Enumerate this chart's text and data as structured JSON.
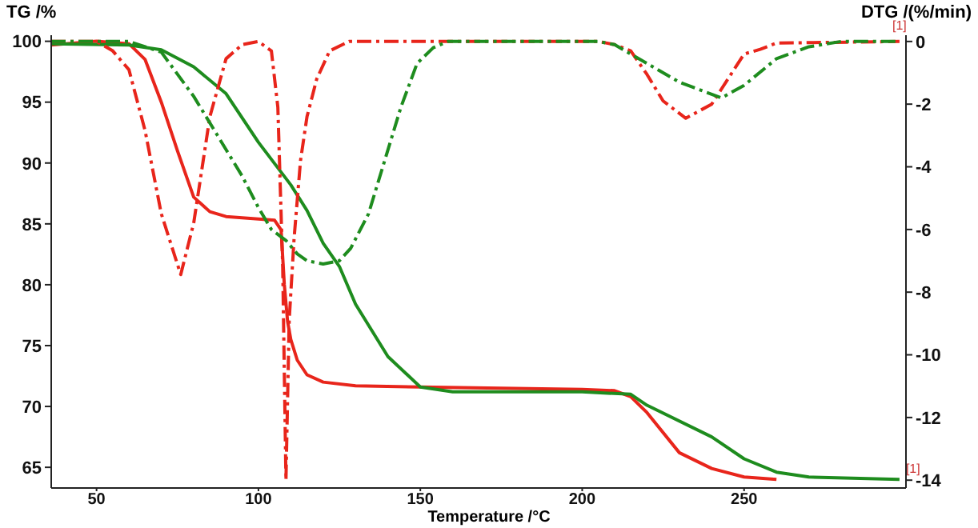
{
  "chart_data": {
    "type": "line",
    "xlabel": "Temperature /°C",
    "ylabel": "TG /%",
    "y2label": "DTG /(%/min)",
    "xlim": [
      36,
      300
    ],
    "xticks": [
      50,
      100,
      150,
      200,
      250
    ],
    "ylim": [
      63.3,
      100.5
    ],
    "yticks": [
      65,
      70,
      75,
      80,
      85,
      90,
      95,
      100
    ],
    "y2lim": [
      -14.25,
      0.2
    ],
    "y2ticks": [
      0,
      -2,
      -4,
      -6,
      -8,
      -10,
      -12,
      -14
    ],
    "marker": "none",
    "series": [
      {
        "color": "#e8251b",
        "line_style": "solid",
        "x": [
          36,
          50,
          60,
          65,
          70,
          75,
          80,
          85,
          90,
          100,
          105,
          107,
          108,
          109,
          110,
          112,
          115,
          120,
          130,
          150,
          200,
          210,
          215,
          220,
          230,
          240,
          250,
          260
        ],
        "values": [
          99.7,
          100,
          99.8,
          98.5,
          95,
          91,
          87.2,
          86,
          85.6,
          85.4,
          85.3,
          84.5,
          80,
          77,
          75.5,
          73.8,
          72.6,
          72,
          71.7,
          71.6,
          71.4,
          71.3,
          70.8,
          69.5,
          66.2,
          64.9,
          64.2,
          64
        ]
      },
      {
        "color": "#1e8c1e",
        "line_style": "solid",
        "x": [
          36,
          60,
          70,
          80,
          90,
          100,
          110,
          115,
          120,
          125,
          130,
          140,
          150,
          160,
          200,
          215,
          220,
          240,
          250,
          260,
          270,
          298
        ],
        "values": [
          99.8,
          99.7,
          99.3,
          97.9,
          95.7,
          91.7,
          88.2,
          86.1,
          83.4,
          81.5,
          78.4,
          74.1,
          71.6,
          71.2,
          71.2,
          71,
          70.1,
          67.5,
          65.7,
          64.6,
          64.2,
          64
        ]
      },
      {
        "color": "#e8251b",
        "line_style": "dashed",
        "axis": "y2",
        "x": [
          36,
          50,
          55,
          60,
          65,
          70,
          76,
          80,
          85,
          90,
          95,
          100,
          104,
          106,
          107.5,
          108.5,
          109.5,
          111,
          113,
          115,
          118,
          122,
          128,
          205,
          210,
          215,
          220,
          225,
          232,
          240,
          245,
          250,
          255,
          260,
          298
        ],
        "values": [
          0,
          0,
          -0.3,
          -0.9,
          -2.85,
          -5.5,
          -7.44,
          -5.8,
          -2.4,
          -0.55,
          -0.1,
          0,
          -0.3,
          -2.1,
          -7.2,
          -14,
          -8.9,
          -6.3,
          -3.8,
          -2.4,
          -1.2,
          -0.3,
          0,
          0,
          -0.1,
          -0.3,
          -1.05,
          -1.9,
          -2.45,
          -2,
          -1.2,
          -0.4,
          -0.25,
          -0.05,
          0
        ]
      },
      {
        "color": "#1e8c1e",
        "line_style": "dashed",
        "axis": "y2",
        "x": [
          36,
          60,
          70,
          80,
          90,
          95,
          100,
          104,
          108.5,
          112,
          115,
          120,
          125,
          128.5,
          134,
          139,
          144,
          149,
          154,
          158.5,
          205,
          210,
          220,
          230,
          243,
          250,
          260,
          270,
          280,
          298
        ],
        "values": [
          0,
          0,
          -0.34,
          -1.75,
          -3.45,
          -4.3,
          -5.3,
          -6,
          -6.35,
          -6.78,
          -7,
          -7.1,
          -7,
          -6.6,
          -5.5,
          -3.8,
          -2.1,
          -0.7,
          -0.2,
          0,
          0,
          -0.1,
          -0.7,
          -1.3,
          -1.8,
          -1.4,
          -0.55,
          -0.17,
          0,
          0
        ]
      }
    ],
    "annotations": [
      {
        "text": "[1]",
        "x": 298,
        "y": 100.3
      },
      {
        "text": "[1]",
        "x": 298,
        "y": 64
      }
    ]
  }
}
